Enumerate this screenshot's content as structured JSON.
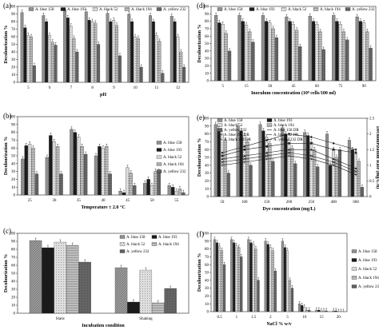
{
  "figure": {
    "title": ""
  },
  "patterns": [
    "#8a8a8a",
    "#1b1b1b",
    "#d9d9d9",
    "#b8b8b8",
    "#555555"
  ],
  "chart_data": [
    {
      "id": "a",
      "panel_label": "(a)",
      "type": "bar",
      "xlabel": "pH",
      "ylabel": "Decolourization %",
      "ylim": [
        0,
        100
      ],
      "yticks": [
        0,
        10,
        20,
        30,
        40,
        50,
        60,
        70,
        80,
        90,
        100
      ],
      "categories": [
        "5",
        "6",
        "7",
        "8",
        "9",
        "10",
        "11",
        "12"
      ],
      "legend_position": "top",
      "series": [
        {
          "name": "A. blue 158",
          "values": [
            92,
            88,
            95,
            93,
            91,
            90,
            88,
            87
          ]
        },
        {
          "name": "A. blue 193",
          "values": [
            72,
            80,
            85,
            82,
            80,
            80,
            80,
            80
          ]
        },
        {
          "name": "A. black 52",
          "values": [
            62,
            62,
            74,
            80,
            82,
            60,
            62,
            60
          ]
        },
        {
          "name": "A. black 194",
          "values": [
            60,
            53,
            58,
            78,
            75,
            58,
            54,
            40
          ]
        },
        {
          "name": "A. yellow 232",
          "values": [
            22,
            49,
            40,
            50,
            35,
            20,
            12,
            20
          ]
        }
      ]
    },
    {
      "id": "d",
      "panel_label": "(d)",
      "type": "bar",
      "xlabel": "Inoculum concentration (10⁸ cells/100 ml)",
      "ylabel": "Decolourization %",
      "ylim": [
        0,
        100
      ],
      "yticks": [
        0,
        10,
        20,
        30,
        40,
        50,
        60,
        70,
        80,
        90,
        100
      ],
      "categories": [
        "5",
        "15",
        "30",
        "45",
        "60",
        "75",
        "90"
      ],
      "legend_position": "top",
      "series": [
        {
          "name": "A. blue 158",
          "values": [
            88,
            88,
            88,
            86,
            87,
            88,
            86
          ]
        },
        {
          "name": "A. blue 193",
          "values": [
            78,
            80,
            80,
            80,
            80,
            80,
            80
          ]
        },
        {
          "name": "A. black 52",
          "values": [
            76,
            75,
            78,
            76,
            76,
            76,
            78
          ]
        },
        {
          "name": "A. black 194",
          "values": [
            64,
            66,
            70,
            68,
            66,
            66,
            66
          ]
        },
        {
          "name": "A. yellow 232",
          "values": [
            40,
            52,
            58,
            46,
            42,
            55,
            44
          ]
        }
      ]
    },
    {
      "id": "b",
      "panel_label": "(b)",
      "type": "bar",
      "xlabel": "Temperature ± 2.0 °C",
      "ylabel": "Decolourization %",
      "ylim": [
        0,
        100
      ],
      "yticks": [
        0,
        10,
        20,
        30,
        40,
        50,
        60,
        70,
        80,
        90,
        100
      ],
      "categories": [
        "25",
        "30",
        "35",
        "40",
        "45",
        "50",
        "55"
      ],
      "legend_position": "right",
      "series": [
        {
          "name": "A. blue 158",
          "values": [
            46,
            48,
            84,
            50,
            5,
            15,
            12
          ]
        },
        {
          "name": "A. blue 193",
          "values": [
            63,
            76,
            80,
            62,
            3,
            20,
            10
          ]
        },
        {
          "name": "A. black 52",
          "values": [
            65,
            68,
            74,
            60,
            35,
            12,
            5
          ]
        },
        {
          "name": "A. black 194",
          "values": [
            60,
            62,
            62,
            62,
            28,
            30,
            8
          ]
        },
        {
          "name": "A. yellow 232",
          "values": [
            27,
            27,
            52,
            27,
            12,
            30,
            3
          ]
        }
      ]
    },
    {
      "id": "e",
      "panel_label": "(e)",
      "type": "bar+line",
      "xlabel": "Dye concentration (mg/L)",
      "ylabel": "Decolourization %",
      "y2label": "Decolourization Rate (mg/L/h)",
      "ylim": [
        0,
        100
      ],
      "yticks": [
        0,
        10,
        20,
        30,
        40,
        50,
        60,
        70,
        80,
        90,
        100
      ],
      "y2lim": [
        0,
        2.5
      ],
      "y2ticks": [
        0,
        0.5,
        1.0,
        1.5,
        2.0,
        2.5
      ],
      "categories": [
        "50",
        "100",
        "150",
        "200",
        "250",
        "400",
        "600"
      ],
      "legend_position": "top-left",
      "series": [
        {
          "name": "A. blue 158",
          "values": [
            92,
            90,
            92,
            88,
            82,
            80,
            72
          ]
        },
        {
          "name": "A. blue 193",
          "values": [
            86,
            84,
            84,
            80,
            78,
            40,
            60
          ]
        },
        {
          "name": "A. black 52",
          "values": [
            80,
            78,
            76,
            72,
            70,
            60,
            55
          ]
        },
        {
          "name": "A. black 194",
          "values": [
            72,
            70,
            68,
            62,
            60,
            50,
            45
          ]
        },
        {
          "name": "A. yellow 232",
          "values": [
            30,
            40,
            45,
            42,
            38,
            60,
            12
          ]
        }
      ],
      "lines": [
        {
          "name": "A. blue 158 DR",
          "values": [
            1.4,
            1.6,
            1.8,
            2.0,
            1.9,
            1.7,
            1.5
          ]
        },
        {
          "name": "A. blue 193 DR",
          "values": [
            1.3,
            1.5,
            1.6,
            1.7,
            1.7,
            1.5,
            1.4
          ]
        },
        {
          "name": "A. black 52 DR",
          "values": [
            1.2,
            1.3,
            1.4,
            1.5,
            1.5,
            1.2,
            0.9
          ]
        },
        {
          "name": "A. black 194 DR",
          "values": [
            1.1,
            1.2,
            1.3,
            1.4,
            1.3,
            1.1,
            0.8
          ]
        },
        {
          "name": "A. yellow 232 DR",
          "values": [
            1.0,
            1.1,
            1.2,
            1.3,
            1.2,
            1.0,
            0.7
          ]
        }
      ]
    },
    {
      "id": "c",
      "panel_label": "(c)",
      "type": "bar",
      "xlabel": "Incubation condition",
      "ylabel": "Decolourization %",
      "ylim": [
        0,
        100
      ],
      "yticks": [
        0,
        10,
        20,
        30,
        40,
        50,
        60,
        70,
        80,
        90,
        100
      ],
      "categories": [
        "Static",
        "Shaking"
      ],
      "legend_position": "top",
      "series": [
        {
          "name": "A. blue 158",
          "values": [
            91,
            57
          ]
        },
        {
          "name": "A. blue 193",
          "values": [
            82,
            14
          ]
        },
        {
          "name": "A. black 52",
          "values": [
            89,
            54
          ]
        },
        {
          "name": "A. black 194",
          "values": [
            85,
            13
          ]
        },
        {
          "name": "A. yellow 232",
          "values": [
            64,
            31
          ]
        }
      ]
    },
    {
      "id": "f",
      "panel_label": "(f)",
      "type": "bar",
      "xlabel": "NaCl % w/v",
      "ylabel": "Decolourization %",
      "ylim": [
        0,
        100
      ],
      "yticks": [
        0,
        10,
        20,
        30,
        40,
        50,
        60,
        70,
        80,
        90,
        100
      ],
      "categories": [
        "0.5",
        "1",
        "1.5",
        "2",
        "5",
        "10",
        "15",
        "20"
      ],
      "legend_position": "right",
      "series": [
        {
          "name": "A. blue 158",
          "values": [
            92,
            92,
            92,
            90,
            90,
            10,
            2,
            1
          ]
        },
        {
          "name": "A. blue 193",
          "values": [
            88,
            88,
            88,
            86,
            82,
            8,
            2,
            1
          ]
        },
        {
          "name": "A. black 52",
          "values": [
            84,
            84,
            86,
            82,
            78,
            6,
            1,
            0
          ]
        },
        {
          "name": "A. black 194",
          "values": [
            78,
            82,
            80,
            78,
            40,
            2,
            1,
            0
          ]
        },
        {
          "name": "A. yellow 232",
          "values": [
            60,
            70,
            40,
            52,
            30,
            2,
            1,
            0
          ]
        }
      ]
    }
  ]
}
